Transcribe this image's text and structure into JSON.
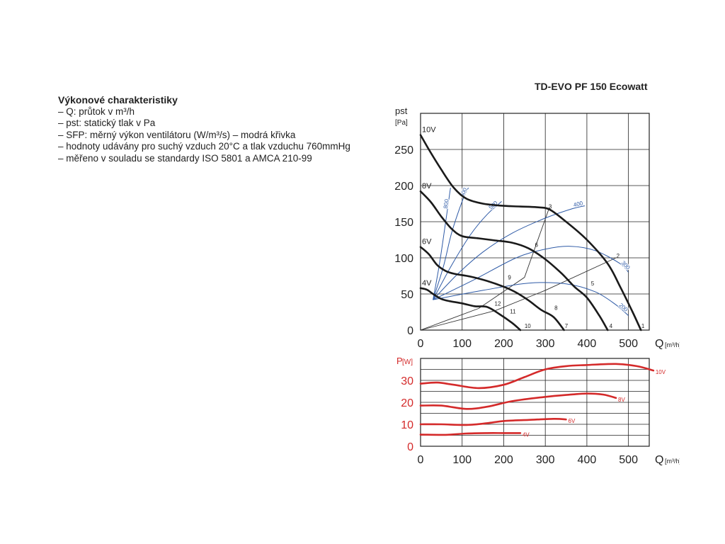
{
  "description": {
    "title": "Výkonové charakteristiky",
    "lines": [
      "– Q: průtok v m³/h",
      "– pst: statický tlak v Pa",
      "– SFP: měrný výkon ventilátoru (W/m³/s) – modrá křivka",
      "– hodnoty udávány pro suchý vzduch 20°C a tlak vzduchu 760mmHg",
      "– měřeno v souladu se standardy ISO 5801 a AMCA 210-99"
    ]
  },
  "colors": {
    "pressure": "#1a1a1a",
    "sfp": "#2e5aa6",
    "power": "#d42a2a",
    "grid": "#222222"
  },
  "chart_data": [
    {
      "type": "line",
      "title": "TD-EVO PF 150 Ecowatt",
      "xlabel": "Q",
      "xunit": "[m³/h]",
      "ylabel": "pst",
      "yunit": "[Pa]",
      "xlim": [
        0,
        550
      ],
      "ylim": [
        0,
        300
      ],
      "xticks": [
        0,
        100,
        200,
        300,
        400,
        500
      ],
      "yticks": [
        0,
        50,
        100,
        150,
        200,
        250
      ],
      "grid": true,
      "series": [
        {
          "name": "10V",
          "points": [
            [
              0,
              270
            ],
            [
              20,
              250
            ],
            [
              50,
              222
            ],
            [
              80,
              197
            ],
            [
              110,
              182
            ],
            [
              150,
              175
            ],
            [
              200,
              172
            ],
            [
              240,
              171
            ],
            [
              280,
              170
            ],
            [
              310,
              167
            ],
            [
              350,
              150
            ],
            [
              400,
              125
            ],
            [
              450,
              92
            ],
            [
              480,
              60
            ],
            [
              510,
              25
            ],
            [
              530,
              0
            ]
          ]
        },
        {
          "name": "8V",
          "points": [
            [
              0,
              192
            ],
            [
              25,
              177
            ],
            [
              50,
              157
            ],
            [
              75,
              140
            ],
            [
              100,
              130
            ],
            [
              140,
              127
            ],
            [
              180,
              124
            ],
            [
              220,
              121
            ],
            [
              260,
              113
            ],
            [
              300,
              98
            ],
            [
              340,
              78
            ],
            [
              370,
              60
            ],
            [
              400,
              45
            ],
            [
              430,
              20
            ],
            [
              450,
              0
            ]
          ]
        },
        {
          "name": "6V",
          "points": [
            [
              0,
              115
            ],
            [
              20,
              105
            ],
            [
              40,
              90
            ],
            [
              60,
              82
            ],
            [
              80,
              78
            ],
            [
              120,
              74
            ],
            [
              160,
              68
            ],
            [
              200,
              60
            ],
            [
              230,
              52
            ],
            [
              260,
              41
            ],
            [
              290,
              28
            ],
            [
              320,
              18
            ],
            [
              345,
              0
            ]
          ]
        },
        {
          "name": "4V",
          "points": [
            [
              0,
              58
            ],
            [
              15,
              56
            ],
            [
              30,
              50
            ],
            [
              50,
              43
            ],
            [
              70,
              40
            ],
            [
              100,
              37
            ],
            [
              130,
              33
            ],
            [
              160,
              32
            ],
            [
              190,
              22
            ],
            [
              220,
              10
            ],
            [
              240,
              0
            ]
          ]
        }
      ],
      "sfp_series": [
        {
          "name": "800",
          "points": [
            [
              30,
              42
            ],
            [
              45,
              90
            ],
            [
              60,
              148
            ],
            [
              72,
              197
            ]
          ]
        },
        {
          "name": "600",
          "points": [
            [
              30,
              42
            ],
            [
              55,
              88
            ],
            [
              75,
              135
            ],
            [
              100,
              178
            ],
            [
              115,
              197
            ]
          ]
        },
        {
          "name": "500",
          "points": [
            [
              30,
              42
            ],
            [
              75,
              90
            ],
            [
              120,
              132
            ],
            [
              160,
              160
            ],
            [
              195,
              178
            ]
          ]
        },
        {
          "name": "400",
          "points": [
            [
              30,
              42
            ],
            [
              90,
              78
            ],
            [
              150,
              108
            ],
            [
              220,
              134
            ],
            [
              300,
              155
            ],
            [
              365,
              168
            ],
            [
              395,
              172
            ]
          ]
        },
        {
          "name": "300",
          "points": [
            [
              30,
              42
            ],
            [
              130,
              70
            ],
            [
              230,
              100
            ],
            [
              300,
              112
            ],
            [
              360,
              116
            ],
            [
              420,
              110
            ],
            [
              480,
              92
            ],
            [
              500,
              80
            ]
          ]
        },
        {
          "name": "200",
          "points": [
            [
              30,
              42
            ],
            [
              150,
              55
            ],
            [
              260,
              65
            ],
            [
              350,
              64
            ],
            [
              420,
              53
            ],
            [
              470,
              35
            ],
            [
              500,
              20
            ]
          ]
        }
      ],
      "point_labels": [
        {
          "label": "1",
          "x": 531,
          "y": 3
        },
        {
          "label": "2",
          "x": 471,
          "y": 100
        },
        {
          "label": "3",
          "x": 308,
          "y": 168
        },
        {
          "label": "4",
          "x": 454,
          "y": 3
        },
        {
          "label": "5",
          "x": 410,
          "y": 62
        },
        {
          "label": "6",
          "x": 275,
          "y": 115
        },
        {
          "label": "7",
          "x": 347,
          "y": 3
        },
        {
          "label": "8",
          "x": 322,
          "y": 28
        },
        {
          "label": "9",
          "x": 210,
          "y": 70
        },
        {
          "label": "10",
          "x": 250,
          "y": 3
        },
        {
          "label": "11",
          "x": 215,
          "y": 23
        },
        {
          "label": "12",
          "x": 178,
          "y": 34
        }
      ],
      "operating_lines": [
        [
          [
            0,
            0
          ],
          [
            140,
            30
          ],
          [
            250,
            73
          ],
          [
            310,
            170
          ]
        ],
        [
          [
            0,
            0
          ],
          [
            180,
            27
          ],
          [
            300,
            55
          ],
          [
            470,
            100
          ]
        ]
      ]
    },
    {
      "type": "line",
      "xlabel": "Q",
      "xunit": "[m³/h]",
      "ylabel": "P",
      "yunit": "[W]",
      "xlim": [
        0,
        550
      ],
      "ylim": [
        0,
        40
      ],
      "xticks": [
        0,
        100,
        200,
        300,
        400,
        500
      ],
      "yticks": [
        0,
        10,
        20,
        30
      ],
      "grid": true,
      "series": [
        {
          "name": "10V",
          "points": [
            [
              0,
              28.5
            ],
            [
              40,
              29
            ],
            [
              80,
              28
            ],
            [
              140,
              26.5
            ],
            [
              200,
              28
            ],
            [
              250,
              31.5
            ],
            [
              300,
              35
            ],
            [
              350,
              36.5
            ],
            [
              400,
              37
            ],
            [
              470,
              37.5
            ],
            [
              520,
              36.5
            ],
            [
              560,
              34.5
            ]
          ]
        },
        {
          "name": "8V",
          "points": [
            [
              0,
              18.5
            ],
            [
              50,
              18.5
            ],
            [
              110,
              17
            ],
            [
              160,
              18
            ],
            [
              220,
              20.5
            ],
            [
              300,
              22.5
            ],
            [
              360,
              23.5
            ],
            [
              400,
              24
            ],
            [
              440,
              23.5
            ],
            [
              470,
              22
            ]
          ]
        },
        {
          "name": "6V",
          "points": [
            [
              0,
              10
            ],
            [
              50,
              10
            ],
            [
              110,
              9.7
            ],
            [
              160,
              10.5
            ],
            [
              200,
              11.5
            ],
            [
              260,
              12
            ],
            [
              320,
              12.5
            ],
            [
              350,
              12.2
            ]
          ]
        },
        {
          "name": "4V",
          "points": [
            [
              0,
              5.3
            ],
            [
              60,
              5.2
            ],
            [
              110,
              5.8
            ],
            [
              160,
              6
            ],
            [
              200,
              6
            ],
            [
              240,
              6
            ]
          ]
        }
      ]
    }
  ]
}
